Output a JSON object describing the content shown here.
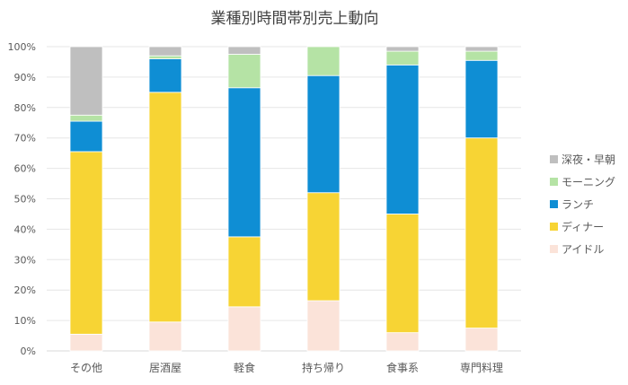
{
  "chart_data": {
    "type": "bar",
    "stacked": true,
    "title": "業種別時間帯別売上動向",
    "categories": [
      "その他",
      "居酒屋",
      "軽食",
      "持ち帰り",
      "食事系",
      "専門料理"
    ],
    "ylim": [
      0,
      100
    ],
    "yticks": [
      "0%",
      "10%",
      "20%",
      "30%",
      "40%",
      "50%",
      "60%",
      "70%",
      "80%",
      "90%",
      "100%"
    ],
    "legend_position": "right",
    "series": [
      {
        "name": "アイドル",
        "color": "#fbe3d9",
        "values": [
          5.5,
          9.5,
          14.5,
          16.5,
          6.0,
          7.5
        ]
      },
      {
        "name": "ディナー",
        "color": "#f7d434",
        "values": [
          60.0,
          75.5,
          23.0,
          35.5,
          39.0,
          62.5
        ]
      },
      {
        "name": "ランチ",
        "color": "#0f8ed4",
        "values": [
          10.0,
          11.0,
          49.0,
          38.5,
          49.0,
          25.5
        ]
      },
      {
        "name": "モーニング",
        "color": "#b5e3a5",
        "values": [
          2.0,
          1.0,
          11.0,
          9.5,
          4.5,
          3.0
        ]
      },
      {
        "name": "深夜・早朝",
        "color": "#bfbfbf",
        "values": [
          22.5,
          3.0,
          2.5,
          0.0,
          1.5,
          1.5
        ]
      }
    ]
  }
}
